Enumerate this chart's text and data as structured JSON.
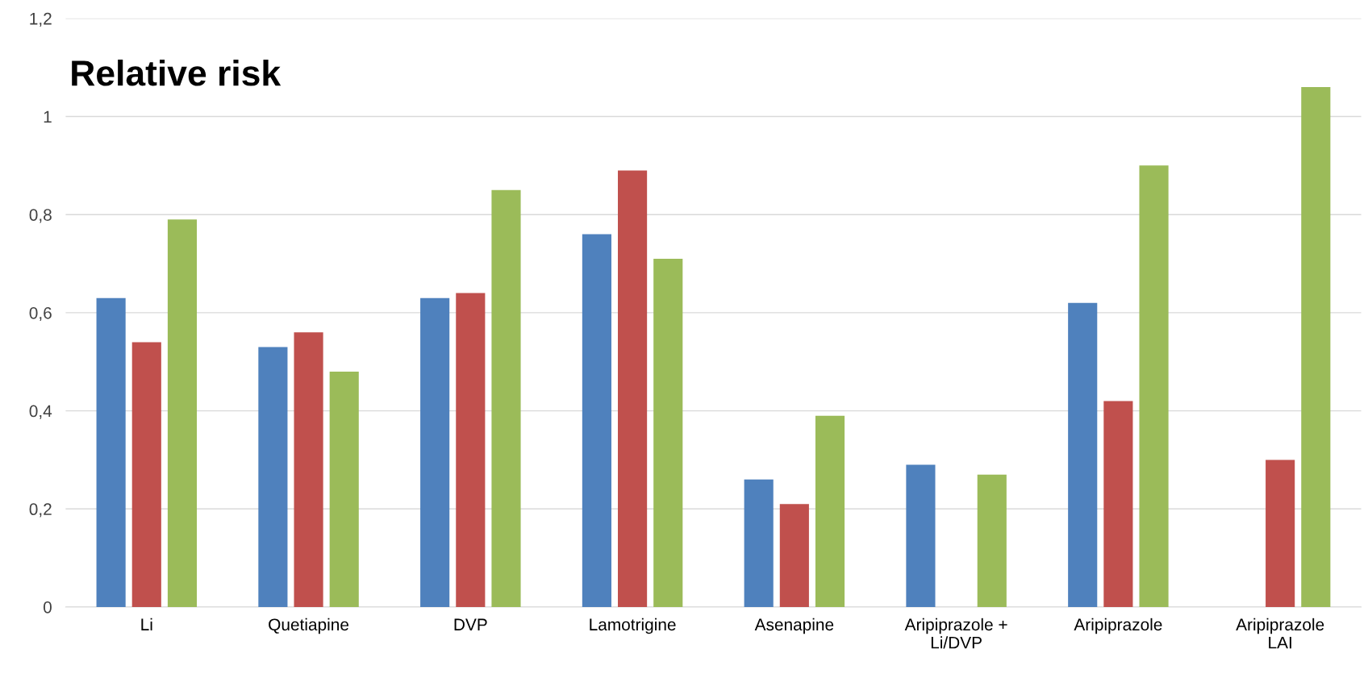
{
  "chart_data": {
    "type": "bar",
    "title": "Relative risk",
    "categories": [
      "Li",
      "Quetiapine",
      "DVP",
      "Lamotrigine",
      "Asenapine",
      "Aripiprazole +\nLi/DVP",
      "Aripiprazole",
      "Aripiprazole\nLAI"
    ],
    "series": [
      {
        "color": "#4f81bd",
        "values": [
          0.63,
          0.53,
          0.63,
          0.76,
          0.26,
          0.29,
          0.62,
          null
        ]
      },
      {
        "color": "#c0504d",
        "values": [
          0.54,
          0.56,
          0.64,
          0.89,
          0.21,
          null,
          0.42,
          0.3
        ]
      },
      {
        "color": "#9bbb59",
        "values": [
          0.79,
          0.48,
          0.85,
          0.71,
          0.39,
          0.27,
          0.9,
          1.06
        ]
      }
    ],
    "ylim": [
      0,
      1.2
    ],
    "yticks": [
      0,
      {
        "value": 0.2,
        "label": "0,2"
      },
      {
        "value": 0.4,
        "label": "0,4"
      },
      {
        "value": 0.6,
        "label": "0,6"
      },
      {
        "value": 0.8,
        "label": "0,8"
      },
      1,
      {
        "value": 1.2,
        "label": "1,2"
      }
    ],
    "grid": "y"
  }
}
